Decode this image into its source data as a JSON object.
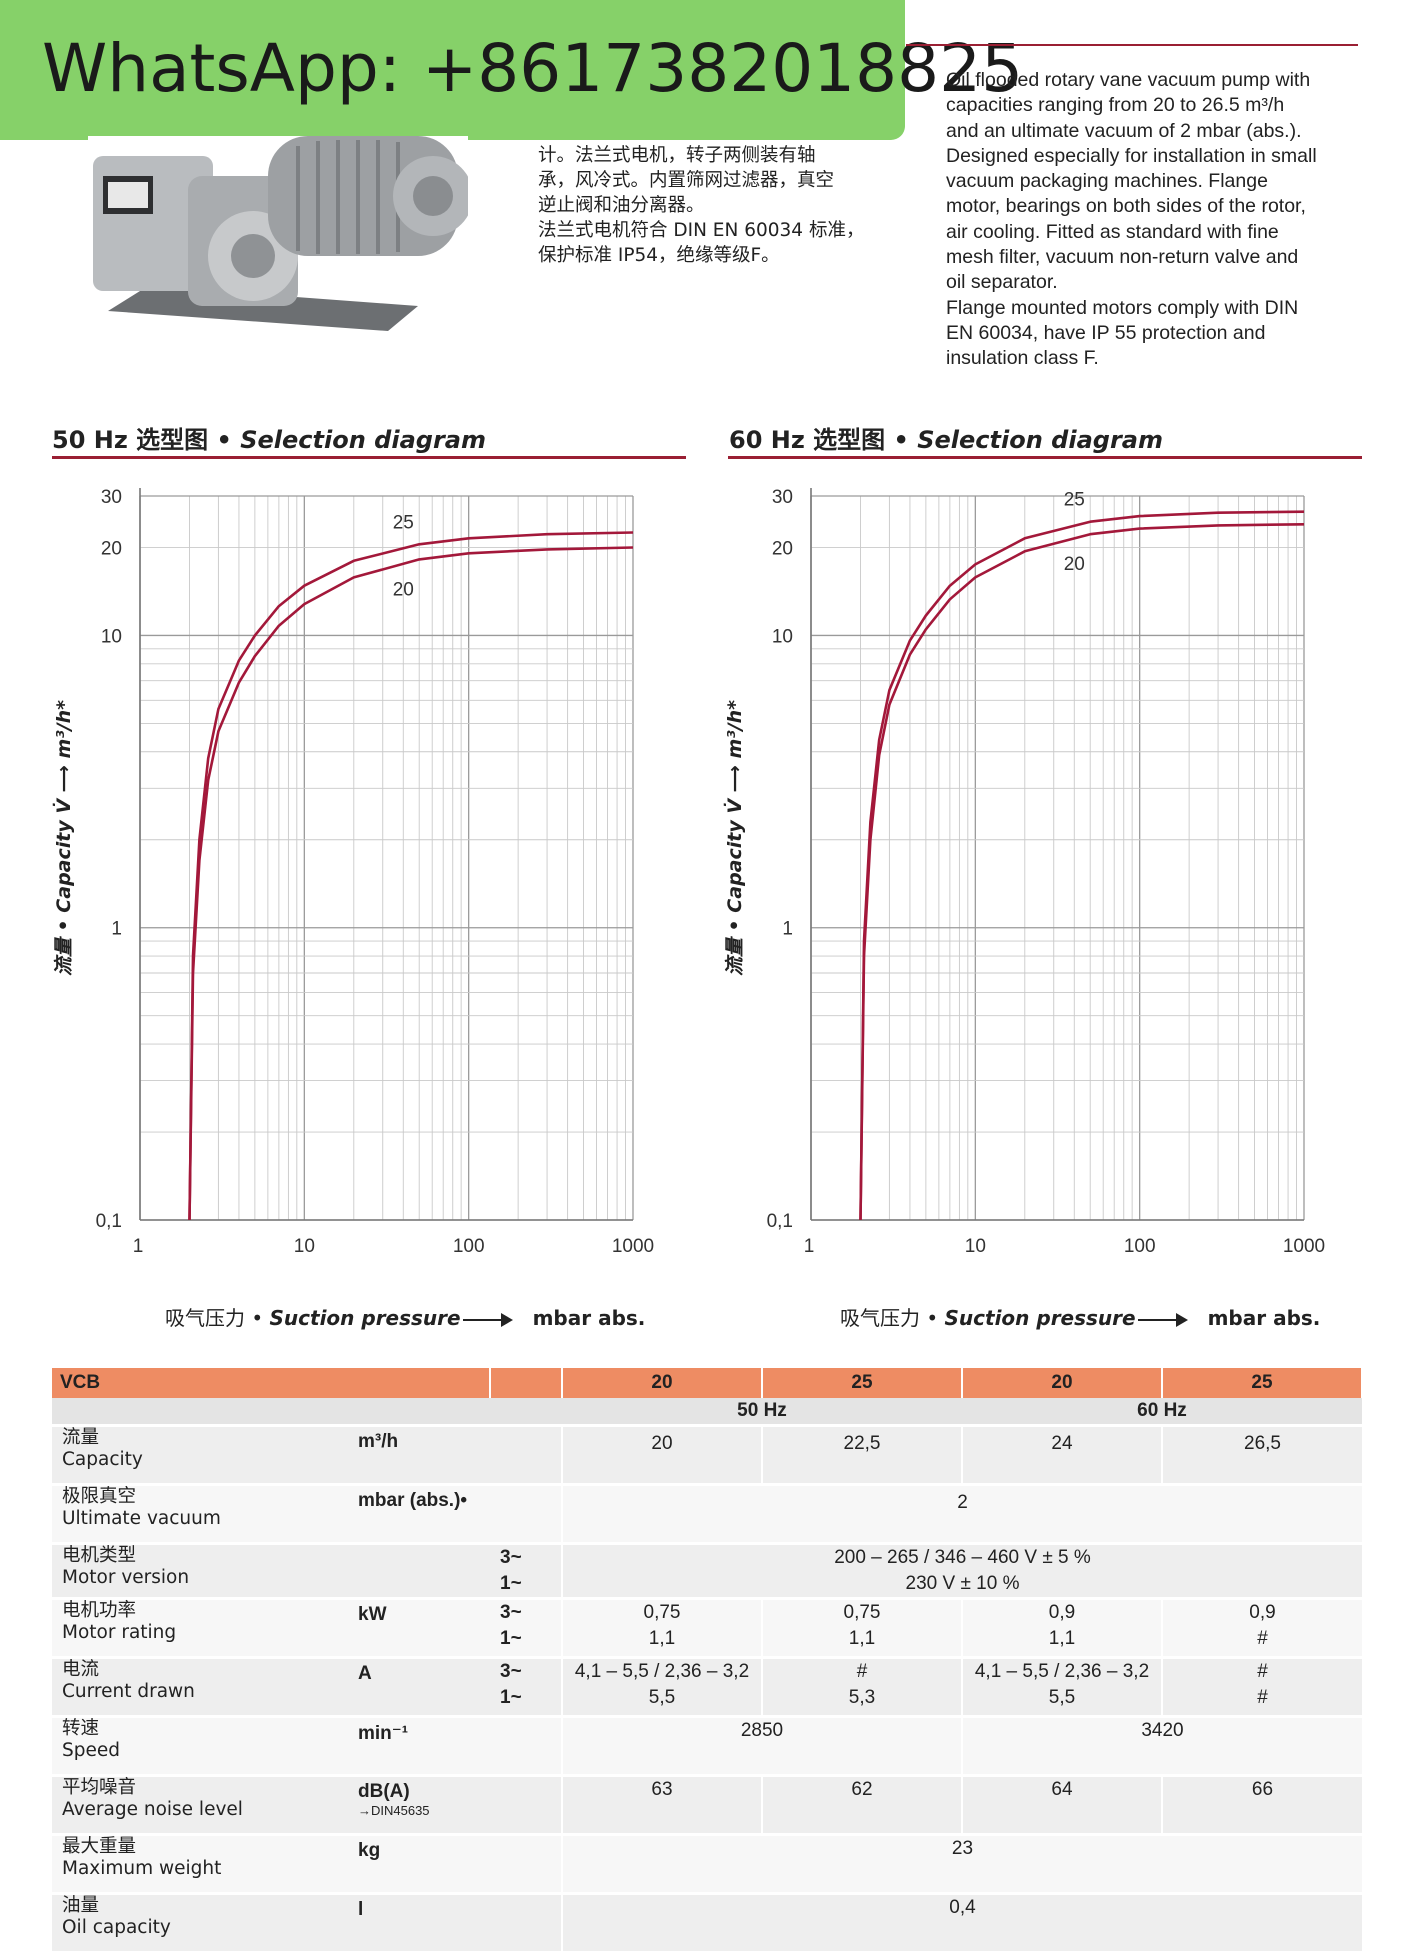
{
  "watermark": {
    "text": "WhatsApp: +8617382018825"
  },
  "description": {
    "chinese_lines": [
      "计。法兰式电机，转子两侧装有轴",
      "承，风冷式。内置筛网过滤器，真空",
      "逆止阀和油分离器。",
      "法兰式电机符合 DIN EN 60034 标准，",
      "保护标准 IP54，绝缘等级F。"
    ],
    "english_lines": [
      "Oil flooded rotary vane vacuum pump with",
      "capacities ranging from 20 to 26.5 m³/h",
      "and an ultimate vacuum of 2 mbar (abs.).",
      "Designed especially for installation in small",
      "vacuum packaging machines. Flange",
      "motor, bearings on both sides of the rotor,",
      "air cooling. Fitted as standard with fine",
      "mesh filter, vacuum non-return valve and",
      "oil separator.",
      "Flange mounted motors comply with DIN",
      "EN 60034, have IP 55 protection and",
      "insulation class F."
    ]
  },
  "colors": {
    "accent": "#9a1f33",
    "curve": "#a3183a",
    "table_header": "#ee8c63"
  },
  "chart_data": [
    {
      "type": "line",
      "title_cn": "50 Hz 选型图",
      "title_sep": " • ",
      "title_en": "Selection diagram",
      "xlabel_cn": "吸气压力",
      "xlabel_sep": " • ",
      "xlabel_en": "Suction pressure",
      "xunit": "mbar abs.",
      "ylabel": "流量 • Capacity V̇ ⟶ m³/h*",
      "xscale": "log",
      "yscale": "log",
      "xlim": [
        1,
        1000
      ],
      "ylim": [
        0.1,
        30
      ],
      "xticks": [
        "1",
        "10",
        "100",
        "1000"
      ],
      "yticks": [
        "0,1",
        "1",
        "10",
        "20",
        "30"
      ],
      "series": [
        {
          "name": "25",
          "x": [
            2,
            2.1,
            2.3,
            2.6,
            3,
            4,
            5,
            7,
            10,
            20,
            50,
            100,
            300,
            1000
          ],
          "y": [
            0.1,
            0.8,
            2.0,
            3.8,
            5.6,
            8.2,
            10.0,
            12.6,
            14.8,
            18.0,
            20.5,
            21.5,
            22.2,
            22.5
          ]
        },
        {
          "name": "20",
          "x": [
            2,
            2.1,
            2.3,
            2.6,
            3,
            4,
            5,
            7,
            10,
            20,
            50,
            100,
            300,
            1000
          ],
          "y": [
            0.1,
            0.7,
            1.7,
            3.2,
            4.7,
            6.9,
            8.5,
            10.8,
            12.8,
            15.8,
            18.2,
            19.1,
            19.7,
            20.0
          ]
        }
      ]
    },
    {
      "type": "line",
      "title_cn": "60 Hz 选型图",
      "title_sep": " • ",
      "title_en": "Selection diagram",
      "xlabel_cn": "吸气压力",
      "xlabel_sep": " • ",
      "xlabel_en": "Suction pressure",
      "xunit": "mbar abs.",
      "ylabel": "流量 • Capacity V̇ ⟶ m³/h*",
      "xscale": "log",
      "yscale": "log",
      "xlim": [
        1,
        1000
      ],
      "ylim": [
        0.1,
        30
      ],
      "xticks": [
        "1",
        "10",
        "100",
        "1000"
      ],
      "yticks": [
        "0,1",
        "1",
        "10",
        "20",
        "30"
      ],
      "series": [
        {
          "name": "25",
          "x": [
            2,
            2.1,
            2.3,
            2.6,
            3,
            4,
            5,
            7,
            10,
            20,
            50,
            100,
            300,
            1000
          ],
          "y": [
            0.1,
            0.9,
            2.3,
            4.4,
            6.5,
            9.6,
            11.7,
            14.8,
            17.5,
            21.5,
            24.5,
            25.6,
            26.3,
            26.5
          ]
        },
        {
          "name": "20",
          "x": [
            2,
            2.1,
            2.3,
            2.6,
            3,
            4,
            5,
            7,
            10,
            20,
            50,
            100,
            300,
            1000
          ],
          "y": [
            0.1,
            0.8,
            2.0,
            3.9,
            5.8,
            8.6,
            10.5,
            13.3,
            15.8,
            19.4,
            22.2,
            23.2,
            23.8,
            24.0
          ]
        }
      ]
    }
  ],
  "table": {
    "model_label": "VCB",
    "sizes": [
      "20",
      "25",
      "20",
      "25"
    ],
    "freq_50": "50 Hz",
    "freq_60": "60 Hz",
    "rows": {
      "capacity": {
        "cn": "流量",
        "en": "Capacity",
        "unit": "m³/h",
        "values": [
          "20",
          "22,5",
          "24",
          "26,5"
        ]
      },
      "vacuum": {
        "cn": "极限真空",
        "en": "Ultimate vacuum",
        "unit": "mbar (abs.)•",
        "value": "2"
      },
      "motor": {
        "cn": "电机类型",
        "en": "Motor version",
        "ph3": "3~",
        "ph1": "1~",
        "v3": "200 – 265 / 346 – 460 V ± 5 %",
        "v1": "230 V ± 10 %"
      },
      "rating": {
        "cn": "电机功率",
        "en": "Motor rating",
        "unit": "kW",
        "ph3": "3~",
        "ph1": "1~",
        "v3": [
          "0,75",
          "0,75",
          "0,9",
          "0,9"
        ],
        "v1": [
          "1,1",
          "1,1",
          "1,1",
          "#"
        ]
      },
      "current": {
        "cn": "电流",
        "en": "Current drawn",
        "unit": "A",
        "ph3": "3~",
        "ph1": "1~",
        "v3": [
          "4,1 – 5,5 / 2,36 – 3,2",
          "#",
          "4,1 – 5,5 / 2,36 – 3,2",
          "#"
        ],
        "v1": [
          "5,5",
          "5,3",
          "5,5",
          "#"
        ]
      },
      "speed": {
        "cn": "转速",
        "en": "Speed",
        "unit": "min⁻¹",
        "v50": "2850",
        "v60": "3420"
      },
      "noise": {
        "cn": "平均噪音",
        "en": "Average noise level",
        "unit": "dB(A)",
        "unit_note": "→DIN45635",
        "values": [
          "63",
          "62",
          "64",
          "66"
        ]
      },
      "weight": {
        "cn": "最大重量",
        "en": "Maximum weight",
        "unit": "kg",
        "value": "23"
      },
      "oil": {
        "cn": "油量",
        "en": "Oil capacity",
        "unit": "l",
        "value": "0,4"
      }
    }
  }
}
